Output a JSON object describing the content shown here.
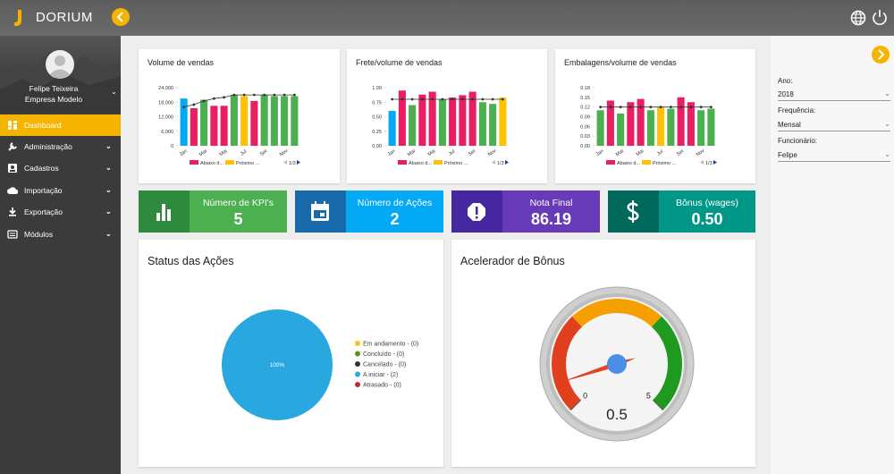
{
  "header": {
    "brand": "DORIUM"
  },
  "sidebar": {
    "user_name": "Felipe Teixeira",
    "company": "Empresa Modelo",
    "menu": [
      "Dashboard",
      "Administração",
      "Cadastros",
      "Importação",
      "Exportação",
      "Módulos"
    ]
  },
  "filters": [
    {
      "label": "Ano:",
      "value": "2018"
    },
    {
      "label": "Frequência:",
      "value": "Mensal"
    },
    {
      "label": "Funcionário:",
      "value": "Felipe"
    }
  ],
  "kpis": [
    {
      "label": "Número de KPI's",
      "value": "5"
    },
    {
      "label": "Número de Ações",
      "value": "2"
    },
    {
      "label": "Nota Final",
      "value": "86.19"
    },
    {
      "label": "Bônus (wages)",
      "value": "0.50"
    }
  ],
  "chart_data": [
    {
      "type": "bar",
      "title": "Volume de vendas",
      "categories": [
        "Jan",
        null,
        "Mar",
        null,
        "Mai",
        null,
        "Jul",
        null,
        "Set",
        null,
        "Nov",
        null
      ],
      "values": [
        19500,
        15500,
        19000,
        16500,
        16500,
        21000,
        20500,
        18500,
        21000,
        20500,
        20500,
        20500
      ],
      "bar_colors": [
        "#03a9f4",
        "#e91e63",
        "#4caf50",
        "#e91e63",
        "#e91e63",
        "#4caf50",
        "#ffc107",
        "#e91e63",
        "#4caf50",
        "#4caf50",
        "#4caf50",
        "#4caf50"
      ],
      "line": {
        "color": "#333333",
        "values": [
          16000,
          17000,
          18500,
          19500,
          20000,
          21000,
          21000,
          21000,
          21000,
          21000,
          21000,
          21000
        ]
      },
      "ylim": [
        0,
        24000
      ],
      "yticks": [
        0,
        {
          "value": 6000,
          "label": "6,000"
        },
        {
          "value": 12000,
          "label": "12,000"
        },
        {
          "value": 18000,
          "label": "18,000"
        },
        {
          "value": 24000,
          "label": "24,000"
        }
      ],
      "legend": [
        {
          "name": "Abaixo d...",
          "color": "#e91e63"
        },
        {
          "name": "Próximo ...",
          "color": "#ffc107"
        }
      ],
      "pager": "1/3"
    },
    {
      "type": "bar",
      "title": "Frete/volume de vendas",
      "categories": [
        "Jan",
        null,
        "Mar",
        null,
        "Mai",
        null,
        "Jul",
        null,
        "Set",
        null,
        "Nov",
        null
      ],
      "values": [
        0.6,
        0.95,
        0.7,
        0.88,
        0.93,
        0.8,
        0.83,
        0.87,
        0.93,
        0.75,
        0.72,
        0.83
      ],
      "bar_colors": [
        "#03a9f4",
        "#e91e63",
        "#4caf50",
        "#e91e63",
        "#e91e63",
        "#4caf50",
        "#e91e63",
        "#e91e63",
        "#e91e63",
        "#4caf50",
        "#4caf50",
        "#ffc107"
      ],
      "line": {
        "color": "#333333",
        "values": [
          0.8,
          0.8,
          0.8,
          0.8,
          0.8,
          0.8,
          0.8,
          0.8,
          0.8,
          0.8,
          0.8,
          0.8
        ]
      },
      "ylim": [
        0,
        1
      ],
      "yticks": [
        {
          "value": 0,
          "label": "0.00"
        },
        0.25,
        {
          "value": 0.5,
          "label": "0.50"
        },
        0.75,
        {
          "value": 1,
          "label": "1.00"
        }
      ],
      "legend": [
        {
          "name": "Abaixo d...",
          "color": "#e91e63"
        },
        {
          "name": "Próximo ...",
          "color": "#ffc107"
        }
      ],
      "pager": "1/3"
    },
    {
      "type": "bar",
      "title": "Embalagens/volume de vendas",
      "categories": [
        "Jan",
        null,
        "Mar",
        null,
        "Mai",
        null,
        "Jul",
        null,
        "Set",
        null,
        "Nov",
        null
      ],
      "values": [
        0.11,
        0.14,
        0.1,
        0.135,
        0.145,
        0.11,
        0.12,
        0.115,
        0.15,
        0.135,
        0.11,
        0.115
      ],
      "bar_colors": [
        "#4caf50",
        "#e91e63",
        "#4caf50",
        "#e91e63",
        "#e91e63",
        "#4caf50",
        "#ffc107",
        "#4caf50",
        "#e91e63",
        "#e91e63",
        "#4caf50",
        "#4caf50"
      ],
      "line": {
        "color": "#333333",
        "values": [
          0.12,
          0.12,
          0.12,
          0.12,
          0.12,
          0.12,
          0.12,
          0.12,
          0.12,
          0.12,
          0.12,
          0.12
        ]
      },
      "ylim": [
        0,
        0.18
      ],
      "yticks": [
        {
          "value": 0,
          "label": "0.00"
        },
        0.03,
        0.06,
        0.09,
        0.12,
        0.15,
        0.18
      ],
      "legend": [
        {
          "name": "Abaixo d...",
          "color": "#e91e63"
        },
        {
          "name": "Próximo ...",
          "color": "#ffc107"
        }
      ],
      "pager": "1/3"
    },
    {
      "type": "pie",
      "title": "Status das Ações",
      "categories": [
        "Em andamento - (0)",
        "Concluído - (0)",
        "Cancelado - (0)",
        "A iniciar - (2)",
        "Atrasado - (0)"
      ],
      "values": [
        0,
        0,
        0,
        100,
        0
      ],
      "value_labels": [
        null,
        null,
        null,
        "100%",
        null
      ],
      "colors": [
        "#f5c518",
        "#6b8e23",
        "#333333",
        "#29a8e0",
        "#c62828"
      ]
    },
    {
      "type": "gauge",
      "title": "Acelerador de Bônus",
      "value": 0.5,
      "min": 0,
      "max": 5,
      "ticks": [
        0,
        5
      ],
      "bands": [
        {
          "from": 0,
          "to": 1.7,
          "color": "#e0401e"
        },
        {
          "from": 1.7,
          "to": 3.3,
          "color": "#f5a000"
        },
        {
          "from": 3.3,
          "to": 5,
          "color": "#1e9a1e"
        }
      ],
      "needle_color": "#e0442b"
    }
  ]
}
